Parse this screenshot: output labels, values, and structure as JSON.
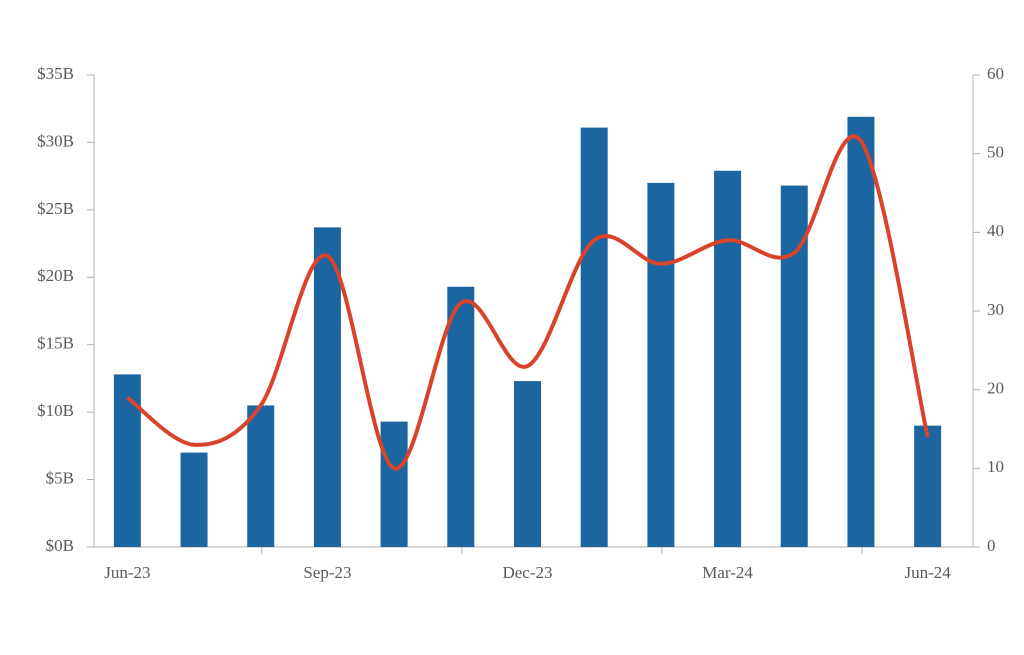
{
  "chart_data": {
    "type": "combo",
    "categories": [
      "Jun-23",
      null,
      null,
      "Sep-23",
      null,
      null,
      "Dec-23",
      null,
      null,
      "Mar-24",
      null,
      null,
      "Jun-24"
    ],
    "series": [
      {
        "type": "bar",
        "color": "#1b65a0",
        "values": [
          12.8,
          7.0,
          10.5,
          23.7,
          9.3,
          19.3,
          12.3,
          31.1,
          27.0,
          27.9,
          26.8,
          31.9,
          9.0
        ]
      },
      {
        "type": "line",
        "color": "#d9432a",
        "axis": "y2",
        "values": [
          19,
          13,
          18,
          37,
          10,
          31,
          23,
          39,
          36,
          39,
          37.4,
          51.6,
          14
        ]
      }
    ],
    "ylim": [
      0,
      35
    ],
    "yticks": [
      {
        "value": 0,
        "label": "$0B"
      },
      {
        "value": 5,
        "label": "$5B"
      },
      {
        "value": 10,
        "label": "$10B"
      },
      {
        "value": 15,
        "label": "$15B"
      },
      {
        "value": 20,
        "label": "$20B"
      },
      {
        "value": 25,
        "label": "$25B"
      },
      {
        "value": 30,
        "label": "$30B"
      },
      {
        "value": 35,
        "label": "$35B"
      }
    ],
    "y2lim": [
      0,
      60
    ],
    "y2ticks": [
      0,
      10,
      20,
      30,
      40,
      50,
      60
    ],
    "grid": false
  }
}
